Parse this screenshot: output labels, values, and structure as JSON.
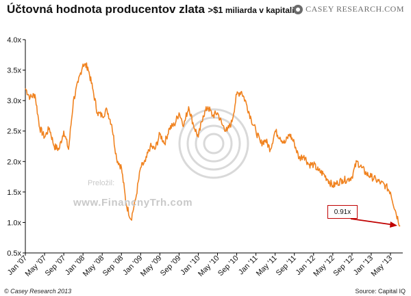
{
  "header": {
    "title": "Účtovná hodnota producentov zlata",
    "subtitle_big": ">$1",
    "subtitle_small": " miliarda v kapitaliz.",
    "logo_text": "CASEY RESEARCH.COM"
  },
  "footer": {
    "copyright": "© Casey Research 2013",
    "source": "Source: Capital IQ"
  },
  "watermark": {
    "label": "Preložil:",
    "url": "www.FinancnyTrh.com"
  },
  "annotation": {
    "text": "0.91x"
  },
  "colors": {
    "series": "#f0821f",
    "arrow": "#c00000",
    "axis": "#000000",
    "watermark": "#c9c9c9"
  },
  "chart_data": {
    "type": "line",
    "title": "Účtovná hodnota producentov zlata >$1 miliarda v kapitaliz.",
    "xlabel": "",
    "ylabel": "",
    "ylim": [
      0.5,
      4.0
    ],
    "yticks": [
      "0.5x",
      "1.0x",
      "1.5x",
      "2.0x",
      "2.5x",
      "3.0x",
      "3.5x",
      "4.0x"
    ],
    "xticks": [
      "Jan '07",
      "May '07",
      "Sep '07",
      "Jan '08",
      "May '08",
      "Sep '08",
      "Jan '09",
      "May '09",
      "Sep '09",
      "Jan '10",
      "May '10",
      "Sep '10",
      "Jan '11",
      "May '11",
      "Sep '11",
      "Jan '12",
      "May '12",
      "Sep '12",
      "Jan '13",
      "May '13"
    ],
    "grid": false,
    "legend": "none",
    "series": [
      {
        "x": [
          "2007-01",
          "2007-02",
          "2007-03",
          "2007-04",
          "2007-05",
          "2007-06",
          "2007-07",
          "2007-08",
          "2007-09",
          "2007-10",
          "2007-11",
          "2007-12",
          "2008-01",
          "2008-02",
          "2008-03",
          "2008-04",
          "2008-05",
          "2008-06",
          "2008-07",
          "2008-08",
          "2008-09",
          "2008-10",
          "2008-11",
          "2008-12",
          "2009-01",
          "2009-02",
          "2009-03",
          "2009-04",
          "2009-05",
          "2009-06",
          "2009-07",
          "2009-08",
          "2009-09",
          "2009-10",
          "2009-11",
          "2009-12",
          "2010-01",
          "2010-02",
          "2010-03",
          "2010-04",
          "2010-05",
          "2010-06",
          "2010-07",
          "2010-08",
          "2010-09",
          "2010-10",
          "2010-11",
          "2010-12",
          "2011-01",
          "2011-02",
          "2011-03",
          "2011-04",
          "2011-05",
          "2011-06",
          "2011-07",
          "2011-08",
          "2011-09",
          "2011-10",
          "2011-11",
          "2011-12",
          "2012-01",
          "2012-02",
          "2012-03",
          "2012-04",
          "2012-05",
          "2012-06",
          "2012-07",
          "2012-08",
          "2012-09",
          "2012-10",
          "2012-11",
          "2012-12",
          "2013-01",
          "2013-02",
          "2013-03",
          "2013-04",
          "2013-05",
          "2013-06",
          "2013-07"
        ],
        "values": [
          3.2,
          3.05,
          3.1,
          2.55,
          2.4,
          2.55,
          2.25,
          2.2,
          2.5,
          2.2,
          3.0,
          3.3,
          3.6,
          3.55,
          3.2,
          2.8,
          2.75,
          2.85,
          2.6,
          2.05,
          1.9,
          1.3,
          1.05,
          1.4,
          1.9,
          2.0,
          2.25,
          2.2,
          2.45,
          2.3,
          2.55,
          2.6,
          2.8,
          2.6,
          2.9,
          2.6,
          2.4,
          2.75,
          2.9,
          2.75,
          2.8,
          2.6,
          2.5,
          2.65,
          3.1,
          3.15,
          2.95,
          2.7,
          2.5,
          2.3,
          2.35,
          2.2,
          2.5,
          2.4,
          2.3,
          2.45,
          2.3,
          2.05,
          2.1,
          1.95,
          1.95,
          1.85,
          1.8,
          1.7,
          1.6,
          1.65,
          1.7,
          1.7,
          1.75,
          2.0,
          1.9,
          1.8,
          1.75,
          1.7,
          1.65,
          1.6,
          1.5,
          1.2,
          0.95
        ]
      }
    ]
  }
}
